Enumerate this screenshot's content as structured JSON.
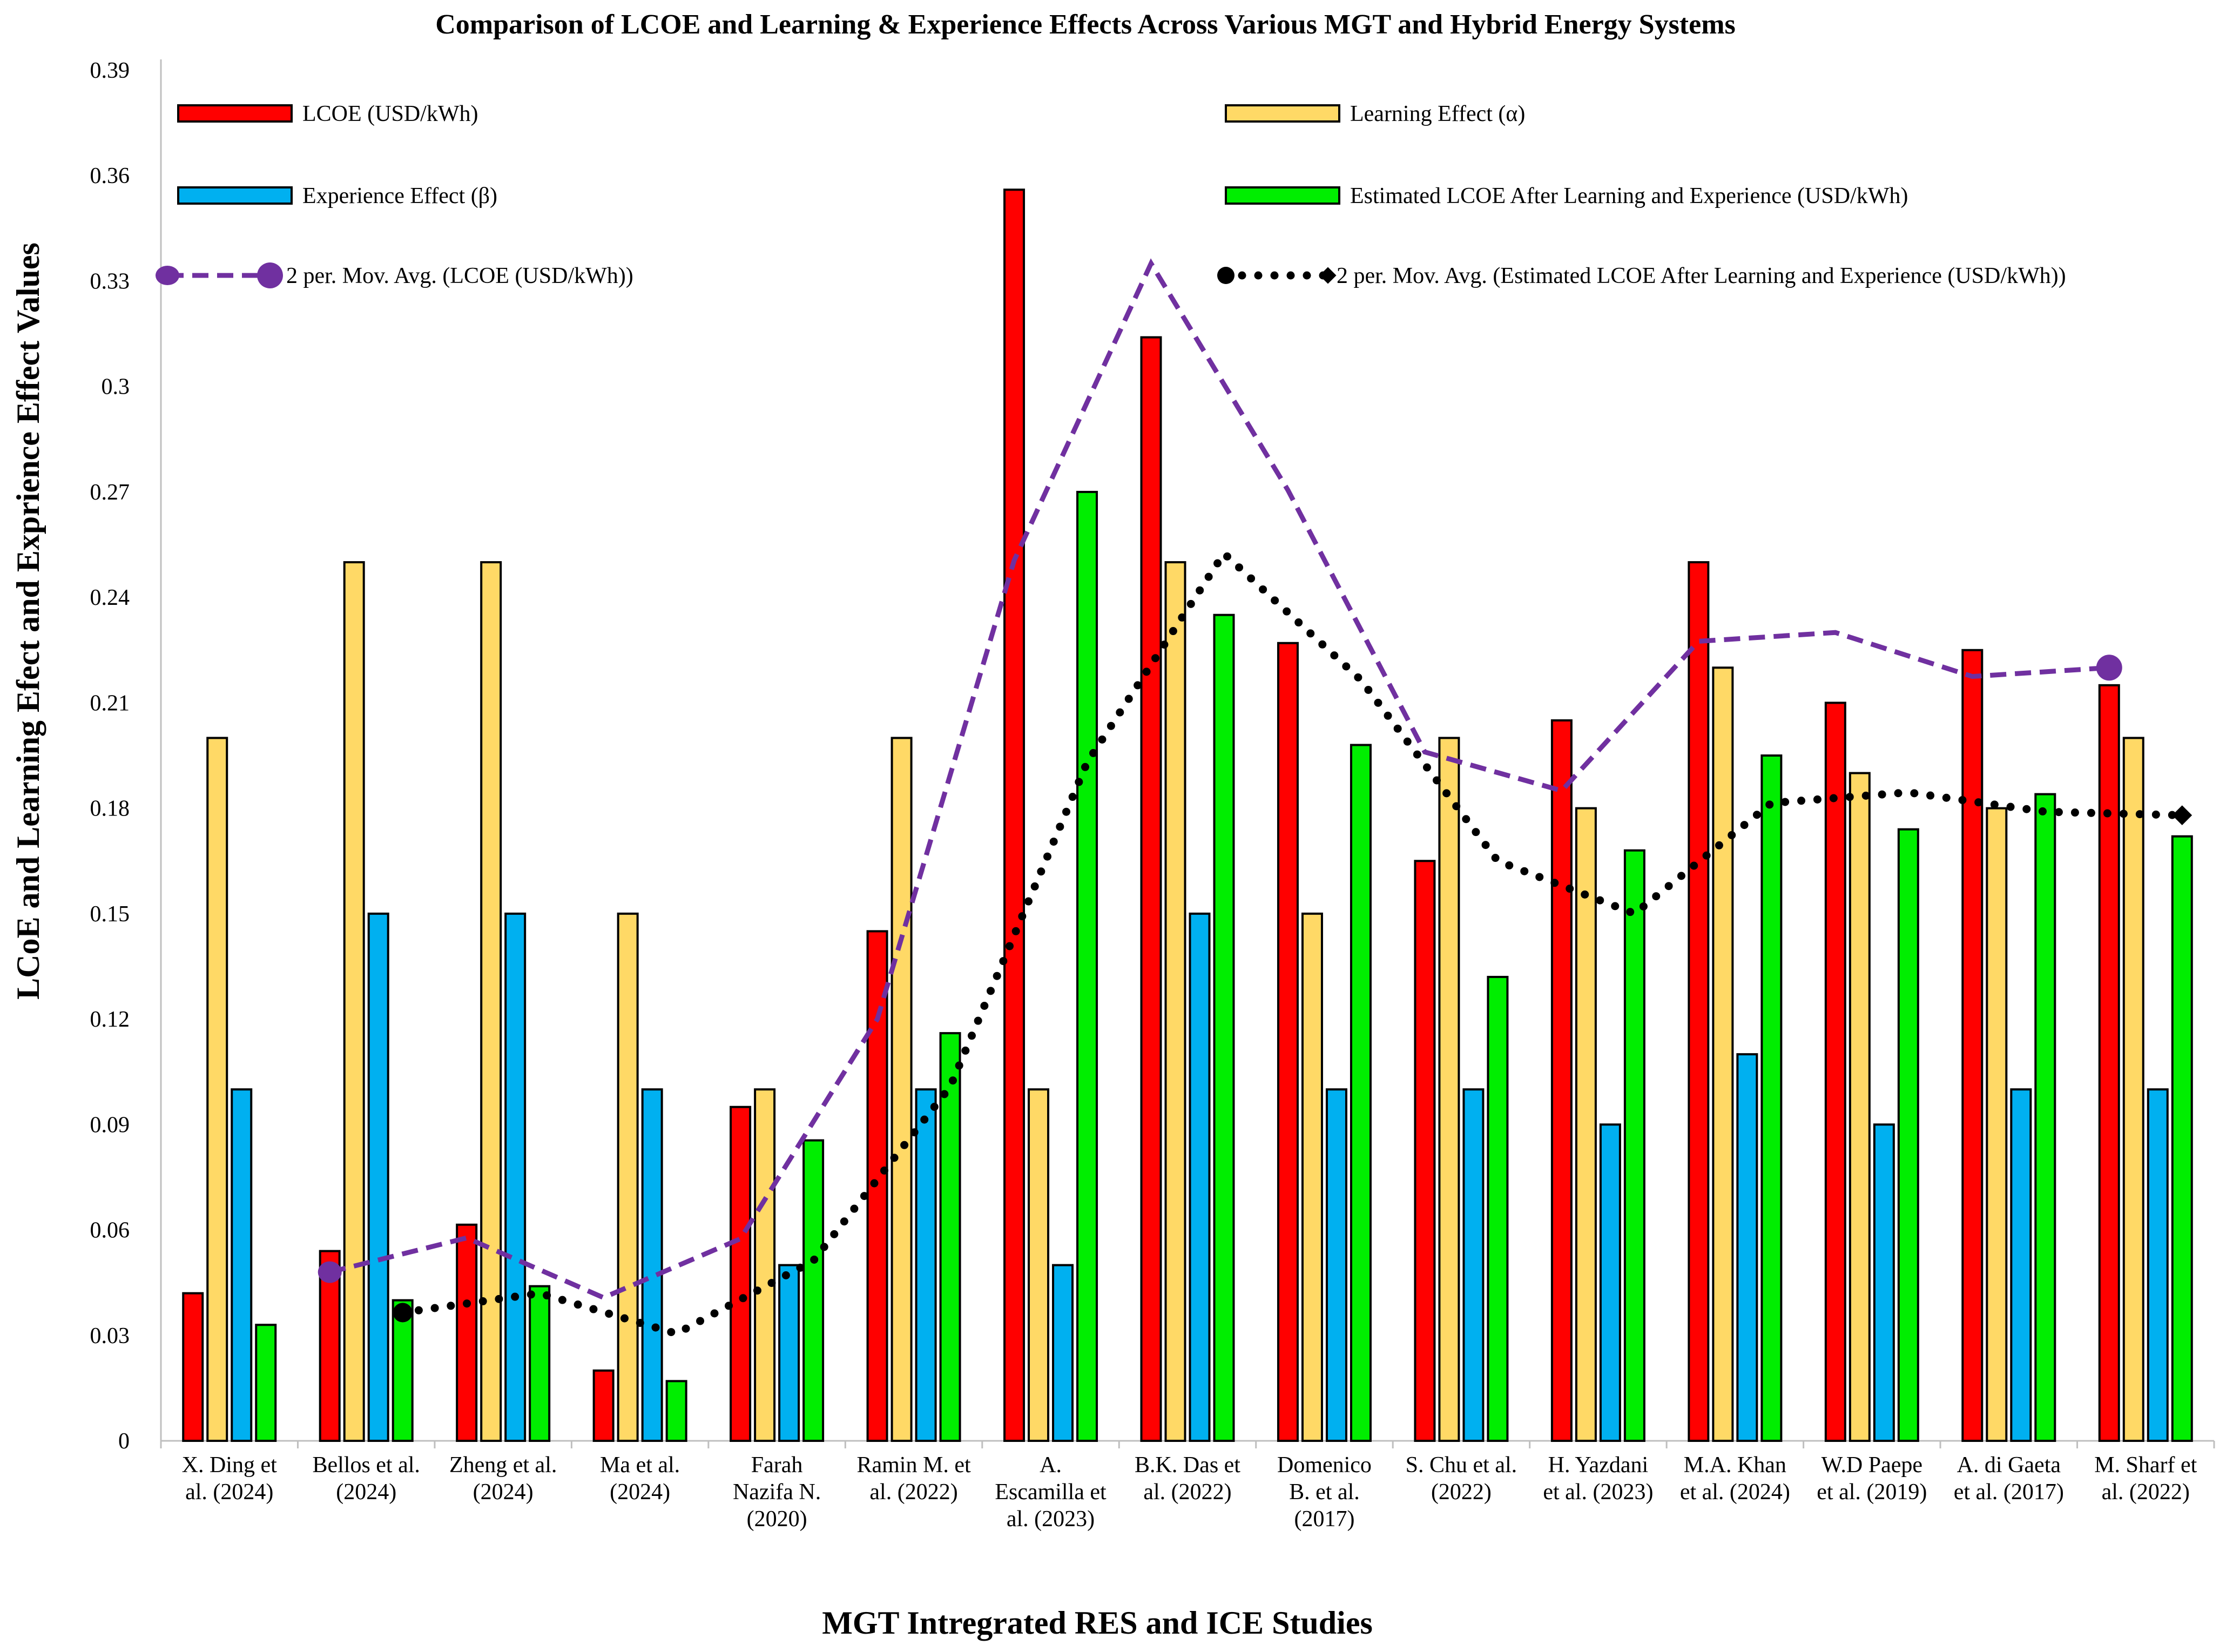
{
  "chart_data": {
    "type": "bar",
    "title": "Comparison of LCOE and Learning & Experience Effects Across Various MGT and Hybrid Energy Systems",
    "xlabel": "MGT Intregrated RES and ICE Studies",
    "ylabel": "LCoE and Learning Efect and Exprience Effect Values",
    "ylim": [
      0,
      0.39
    ],
    "ytick_labels": [
      "0",
      "0.03",
      "0.06",
      "0.09",
      "0.12",
      "0.15",
      "0.18",
      "0.21",
      "0.24",
      "0.27",
      "0.3",
      "0.33",
      "0.36",
      "0.39"
    ],
    "categories": [
      [
        "X. Ding et",
        "al. (2024)"
      ],
      [
        "Bellos et al.",
        "(2024)"
      ],
      [
        "Zheng et al.",
        "(2024)"
      ],
      [
        "Ma et al.",
        "(2024)"
      ],
      [
        "Farah",
        "Nazifa N.",
        "(2020)"
      ],
      [
        "Ramin M. et",
        "al. (2022)"
      ],
      [
        "A.",
        "Escamilla et",
        "al. (2023)"
      ],
      [
        "B.K. Das et",
        "al. (2022)"
      ],
      [
        "Domenico",
        "B. et al.",
        "(2017)"
      ],
      [
        "S. Chu et al.",
        "(2022)"
      ],
      [
        "H. Yazdani",
        "et al. (2023)"
      ],
      [
        "M.A. Khan",
        "et al. (2024)"
      ],
      [
        "W.D Paepe",
        "et al. (2019)"
      ],
      [
        "A. di Gaeta",
        "et al. (2017)"
      ],
      [
        "M. Sharf et",
        "al. (2022)"
      ]
    ],
    "series": [
      {
        "name": "LCOE (USD/kWh)",
        "color": "#ff0000",
        "values": [
          0.042,
          0.054,
          0.0615,
          0.02,
          0.095,
          0.145,
          0.356,
          0.314,
          0.227,
          0.165,
          0.205,
          0.25,
          0.21,
          0.225,
          0.215
        ]
      },
      {
        "name": "Learning Effect (α)",
        "color": "#ffd966",
        "values": [
          0.2,
          0.25,
          0.25,
          0.15,
          0.1,
          0.2,
          0.1,
          0.25,
          0.15,
          0.2,
          0.18,
          0.22,
          0.19,
          0.18,
          0.2
        ]
      },
      {
        "name": "Experience Effect (β)",
        "color": "#00b0f0",
        "values": [
          0.1,
          0.15,
          0.15,
          0.1,
          0.05,
          0.1,
          0.05,
          0.15,
          0.1,
          0.1,
          0.09,
          0.11,
          0.09,
          0.1,
          0.1
        ]
      },
      {
        "name": "Estimated LCOE After Learning and Experience (USD/kWh)",
        "color": "#00ee00",
        "values": [
          0.033,
          0.04,
          0.044,
          0.017,
          0.0855,
          0.116,
          0.27,
          0.235,
          0.198,
          0.132,
          0.168,
          0.195,
          0.174,
          0.184,
          0.172
        ]
      }
    ],
    "trendlines": [
      {
        "name": "2 per. Mov. Avg. (LCOE (USD/kWh))",
        "color": "#7030a0",
        "style": "dashed",
        "of_series": 0
      },
      {
        "name": "2 per. Mov. Avg. (Estimated LCOE After Learning and Experience (USD/kWh))",
        "color": "#000000",
        "style": "dotted",
        "of_series": 3
      }
    ],
    "legend_position": "top, inside plot area",
    "grid": false
  }
}
